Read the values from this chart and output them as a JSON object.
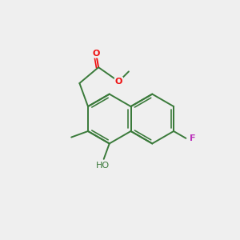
{
  "bg_color": "#efefef",
  "bond_color": "#3a7a3a",
  "bond_width": 1.4,
  "o_color": "#ee1111",
  "f_color": "#bb33bb",
  "c_color": "#3a7a3a",
  "figsize": [
    3.0,
    3.0
  ],
  "dpi": 100,
  "xlim": [
    0,
    10
  ],
  "ylim": [
    0,
    10
  ]
}
